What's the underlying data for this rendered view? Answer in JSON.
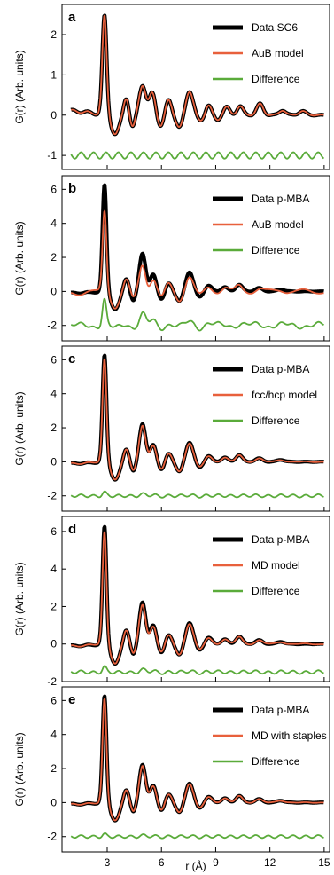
{
  "figure": {
    "xlabel": "r (Å)",
    "ylabel": "G(r) (Arb. units)",
    "x_ticks": [
      "3",
      "6",
      "9",
      "12",
      "15"
    ],
    "colors": {
      "data": "#000000",
      "model": "#e8603c",
      "difference": "#5aab3a"
    }
  },
  "chart_data": [
    {
      "type": "line",
      "panel_label": "a",
      "xlim": [
        0.5,
        15.3
      ],
      "ylim": [
        -1.35,
        2.75
      ],
      "y_ticks": [
        "2",
        "1",
        "0",
        "-1"
      ],
      "y_tick_values": [
        2,
        1,
        0,
        -1
      ],
      "legend_position": "top-right",
      "difference_offset": -1.0,
      "series": [
        {
          "name": "Data SC6",
          "role": "data",
          "color": "#000000"
        },
        {
          "name": "AuB model",
          "role": "model",
          "color": "#e8603c"
        },
        {
          "name": "Difference",
          "role": "difference",
          "color": "#5aab3a"
        }
      ],
      "peaks": [
        [
          2.85,
          2.45,
          0.12
        ],
        [
          4.05,
          0.45,
          0.14
        ],
        [
          4.95,
          0.75,
          0.18
        ],
        [
          5.5,
          0.55,
          0.17
        ],
        [
          6.4,
          0.38,
          0.16
        ],
        [
          7.55,
          0.6,
          0.2
        ],
        [
          8.6,
          0.25,
          0.16
        ],
        [
          9.6,
          0.2,
          0.17
        ],
        [
          10.35,
          0.22,
          0.17
        ],
        [
          11.45,
          0.28,
          0.18
        ],
        [
          12.7,
          0.12,
          0.18
        ],
        [
          13.8,
          0.1,
          0.2
        ]
      ],
      "troughs": [
        [
          3.45,
          -0.48,
          0.22
        ],
        [
          4.4,
          -0.32,
          0.14
        ],
        [
          5.95,
          -0.28,
          0.17
        ],
        [
          7.0,
          -0.32,
          0.18
        ],
        [
          8.15,
          -0.15,
          0.18
        ],
        [
          9.1,
          -0.12,
          0.17
        ]
      ],
      "start_level": 0.1,
      "model_scale": 1.0
    },
    {
      "type": "line",
      "panel_label": "b",
      "xlim": [
        0.5,
        15.3
      ],
      "ylim": [
        -2.9,
        6.8
      ],
      "y_ticks": [
        "6",
        "4",
        "2",
        "0",
        "-2"
      ],
      "y_tick_values": [
        6,
        4,
        2,
        0,
        -2
      ],
      "legend_position": "top-right",
      "difference_offset": -2.0,
      "series": [
        {
          "name": "Data p-MBA",
          "role": "data",
          "color": "#000000"
        },
        {
          "name": "AuB model",
          "role": "model",
          "color": "#e8603c"
        },
        {
          "name": "Difference",
          "role": "difference",
          "color": "#5aab3a"
        }
      ],
      "peaks": [
        [
          2.85,
          6.3,
          0.11
        ],
        [
          4.05,
          0.8,
          0.15
        ],
        [
          4.95,
          2.25,
          0.17
        ],
        [
          5.55,
          1.0,
          0.17
        ],
        [
          6.4,
          0.5,
          0.17
        ],
        [
          7.55,
          1.15,
          0.2
        ],
        [
          8.6,
          0.35,
          0.18
        ],
        [
          9.5,
          0.25,
          0.18
        ],
        [
          10.3,
          0.4,
          0.18
        ],
        [
          11.4,
          0.2,
          0.2
        ],
        [
          12.6,
          0.12,
          0.2
        ]
      ],
      "troughs": [
        [
          3.45,
          -1.05,
          0.23
        ],
        [
          4.45,
          -0.6,
          0.14
        ],
        [
          6.0,
          -0.5,
          0.17
        ],
        [
          7.0,
          -0.6,
          0.18
        ],
        [
          8.1,
          -0.35,
          0.18
        ]
      ],
      "start_level": -0.1,
      "model_scale": 0.78
    },
    {
      "type": "line",
      "panel_label": "c",
      "xlim": [
        0.5,
        15.3
      ],
      "ylim": [
        -2.9,
        6.8
      ],
      "y_ticks": [
        "6",
        "4",
        "2",
        "0",
        "-2"
      ],
      "y_tick_values": [
        6,
        4,
        2,
        0,
        -2
      ],
      "legend_position": "top-right",
      "difference_offset": -2.0,
      "series": [
        {
          "name": "Data p-MBA",
          "role": "data",
          "color": "#000000"
        },
        {
          "name": "fcc/hcp model",
          "role": "model",
          "color": "#e8603c"
        },
        {
          "name": "Difference",
          "role": "difference",
          "color": "#5aab3a"
        }
      ],
      "peaks": [
        [
          2.85,
          6.3,
          0.11
        ],
        [
          4.05,
          0.8,
          0.15
        ],
        [
          4.95,
          2.25,
          0.17
        ],
        [
          5.55,
          1.0,
          0.17
        ],
        [
          6.4,
          0.5,
          0.17
        ],
        [
          7.55,
          1.15,
          0.2
        ],
        [
          8.6,
          0.35,
          0.18
        ],
        [
          9.5,
          0.25,
          0.18
        ],
        [
          10.3,
          0.4,
          0.18
        ],
        [
          11.4,
          0.2,
          0.2
        ],
        [
          12.6,
          0.12,
          0.2
        ]
      ],
      "troughs": [
        [
          3.45,
          -1.05,
          0.23
        ],
        [
          4.45,
          -0.6,
          0.14
        ],
        [
          6.0,
          -0.5,
          0.17
        ],
        [
          7.0,
          -0.6,
          0.18
        ],
        [
          8.1,
          -0.35,
          0.18
        ]
      ],
      "start_level": -0.1,
      "model_scale": 0.97
    },
    {
      "type": "line",
      "panel_label": "d",
      "xlim": [
        0.5,
        15.3
      ],
      "ylim": [
        -2.0,
        6.8
      ],
      "y_ticks": [
        "6",
        "4",
        "2",
        "0",
        "-2"
      ],
      "y_tick_values": [
        6,
        4,
        2,
        0,
        -2
      ],
      "legend_position": "top-right",
      "difference_offset": -1.5,
      "series": [
        {
          "name": "Data p-MBA",
          "role": "data",
          "color": "#000000"
        },
        {
          "name": "MD model",
          "role": "model",
          "color": "#e8603c"
        },
        {
          "name": "Difference",
          "role": "difference",
          "color": "#5aab3a"
        }
      ],
      "peaks": [
        [
          2.85,
          6.3,
          0.11
        ],
        [
          4.05,
          0.8,
          0.15
        ],
        [
          4.95,
          2.25,
          0.17
        ],
        [
          5.55,
          1.0,
          0.17
        ],
        [
          6.4,
          0.5,
          0.17
        ],
        [
          7.55,
          1.15,
          0.2
        ],
        [
          8.6,
          0.35,
          0.18
        ],
        [
          9.5,
          0.25,
          0.18
        ],
        [
          10.3,
          0.4,
          0.18
        ],
        [
          11.4,
          0.2,
          0.2
        ],
        [
          12.6,
          0.12,
          0.2
        ]
      ],
      "troughs": [
        [
          3.45,
          -1.05,
          0.23
        ],
        [
          4.45,
          -0.6,
          0.14
        ],
        [
          6.0,
          -0.5,
          0.17
        ],
        [
          7.0,
          -0.6,
          0.18
        ],
        [
          8.1,
          -0.35,
          0.18
        ]
      ],
      "start_level": -0.1,
      "model_scale": 0.96
    },
    {
      "type": "line",
      "panel_label": "e",
      "xlim": [
        0.5,
        15.3
      ],
      "ylim": [
        -2.9,
        6.8
      ],
      "y_ticks": [
        "6",
        "4",
        "2",
        "0",
        "-2"
      ],
      "y_tick_values": [
        6,
        4,
        2,
        0,
        -2
      ],
      "legend_position": "top-right",
      "difference_offset": -2.0,
      "series": [
        {
          "name": "Data p-MBA",
          "role": "data",
          "color": "#000000"
        },
        {
          "name": "MD with staples",
          "role": "model",
          "color": "#e8603c"
        },
        {
          "name": "Difference",
          "role": "difference",
          "color": "#5aab3a"
        }
      ],
      "peaks": [
        [
          2.85,
          6.3,
          0.11
        ],
        [
          4.05,
          0.8,
          0.15
        ],
        [
          4.95,
          2.25,
          0.17
        ],
        [
          5.55,
          1.0,
          0.17
        ],
        [
          6.4,
          0.5,
          0.17
        ],
        [
          7.55,
          1.15,
          0.2
        ],
        [
          8.6,
          0.35,
          0.18
        ],
        [
          9.5,
          0.25,
          0.18
        ],
        [
          10.3,
          0.4,
          0.18
        ],
        [
          11.4,
          0.2,
          0.2
        ],
        [
          12.6,
          0.12,
          0.2
        ]
      ],
      "troughs": [
        [
          3.45,
          -1.05,
          0.23
        ],
        [
          4.45,
          -0.6,
          0.14
        ],
        [
          6.0,
          -0.5,
          0.17
        ],
        [
          7.0,
          -0.6,
          0.18
        ],
        [
          8.1,
          -0.35,
          0.18
        ]
      ],
      "start_level": -0.1,
      "model_scale": 0.98
    }
  ]
}
